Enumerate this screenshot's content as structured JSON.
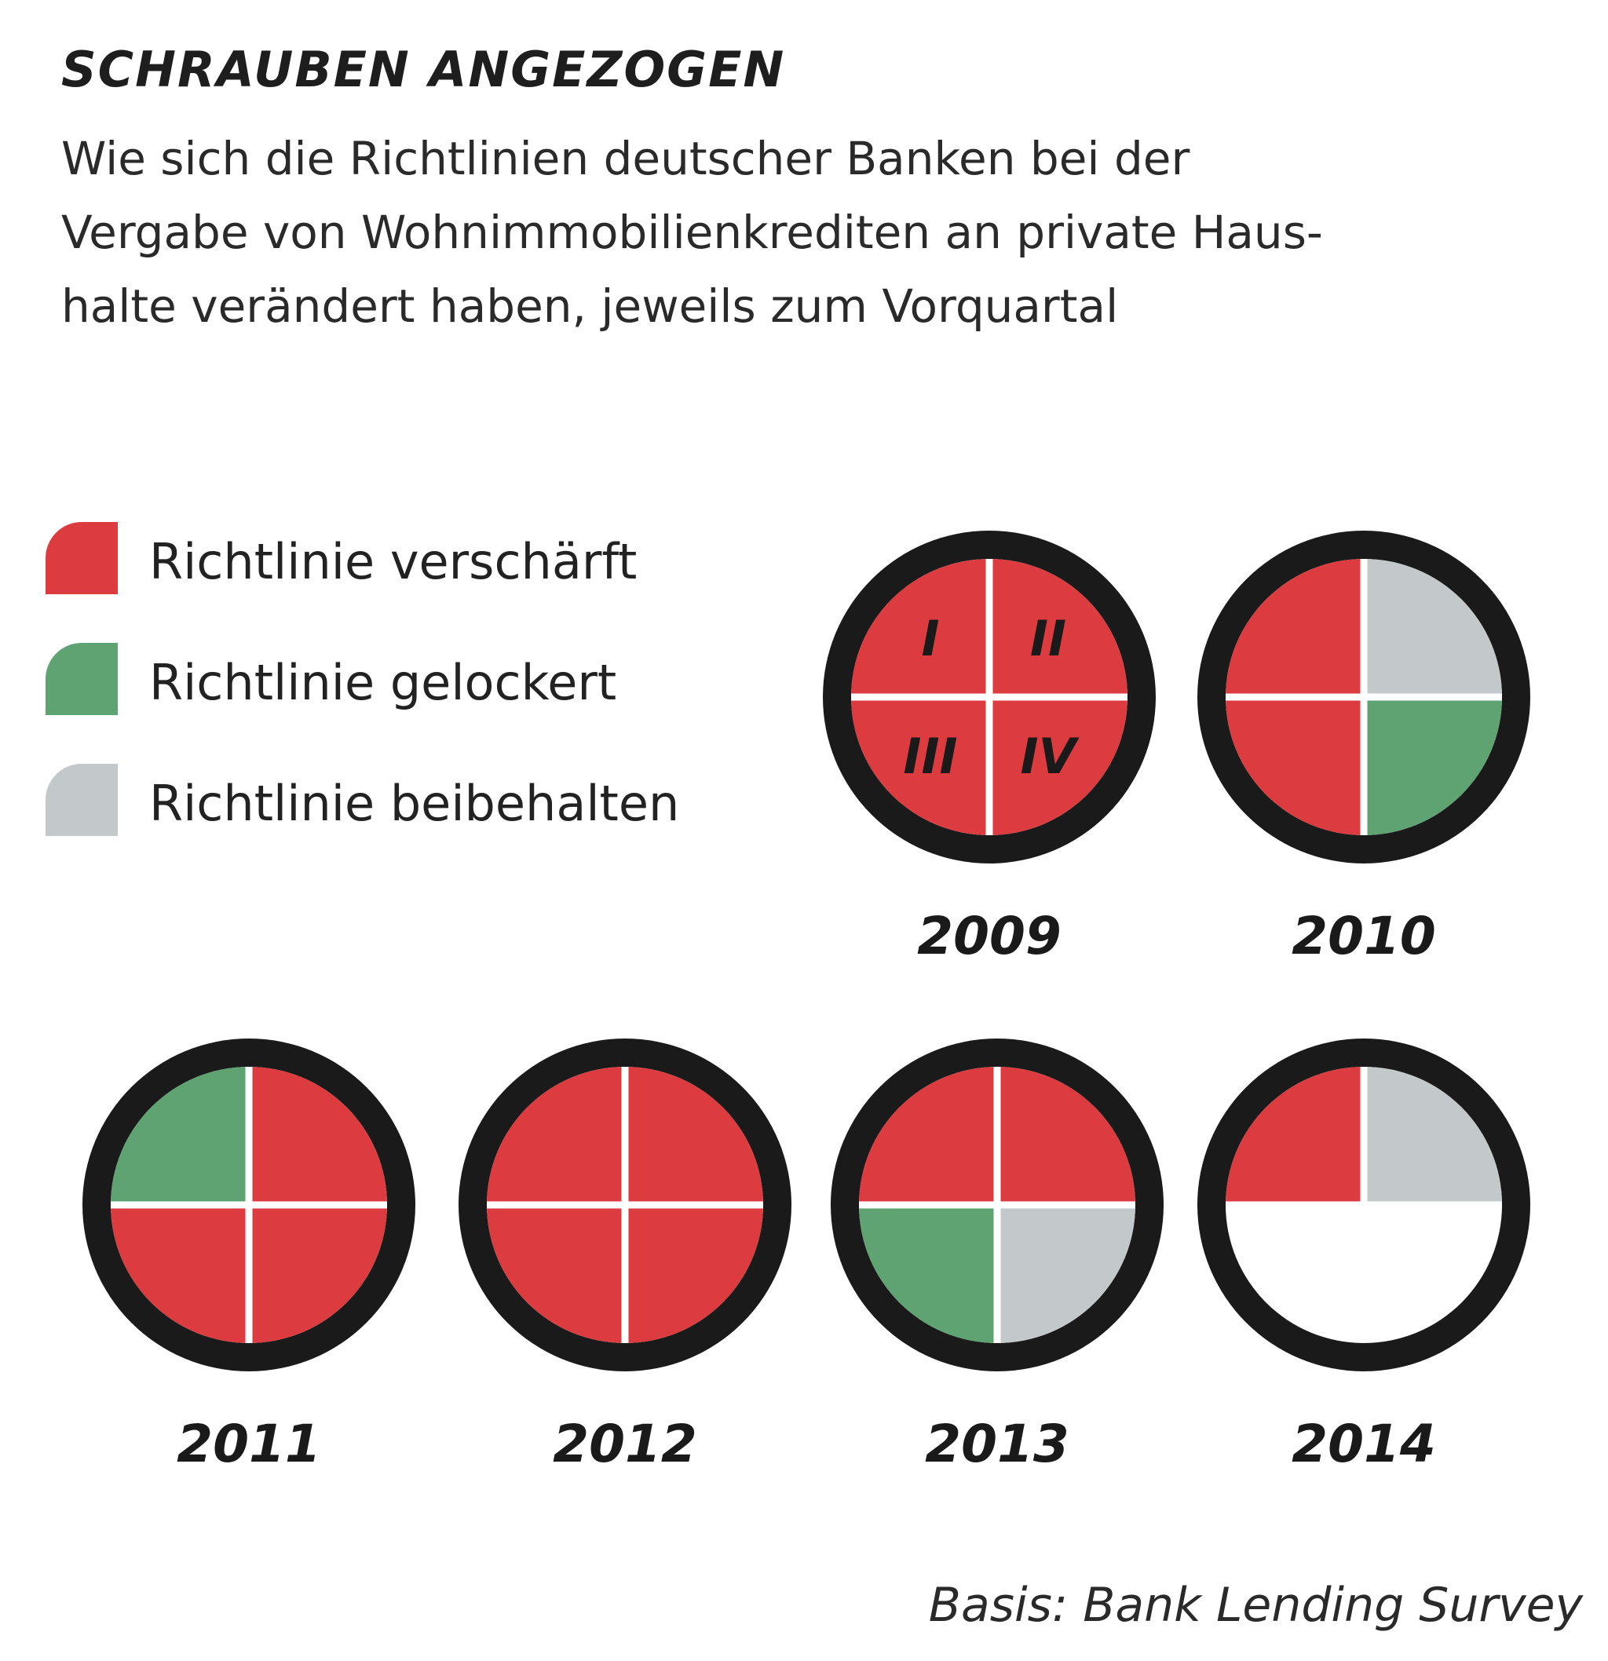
{
  "colors": {
    "tightened": "#dc3c40",
    "eased": "#5fa373",
    "unchanged": "#c3c8ca",
    "ring": "#1a1a1a",
    "divider": "#ffffff",
    "text": "#222222"
  },
  "chart_data": {
    "type": "quadrant-dial",
    "title": "SCHRAUBEN ANGEZOGEN",
    "subtitle_lines": [
      "Wie sich die Richtlinien deutscher Banken bei der",
      "Vergabe von Wohnimmobilienkrediten an private Haus-",
      "halte verändert haben, jeweils zum Vorquartal"
    ],
    "legend": [
      {
        "key": "tightened",
        "label": "Richtlinie verschärft"
      },
      {
        "key": "eased",
        "label": "Richtlinie gelockert"
      },
      {
        "key": "unchanged",
        "label": "Richtlinie beibehalten"
      }
    ],
    "quarter_labels": [
      "I",
      "II",
      "III",
      "IV"
    ],
    "years": [
      {
        "year": "2009",
        "quarters": [
          "tightened",
          "tightened",
          "tightened",
          "tightened"
        ],
        "show_quarter_labels": true
      },
      {
        "year": "2010",
        "quarters": [
          "tightened",
          "unchanged",
          "tightened",
          "eased"
        ],
        "show_quarter_labels": false
      },
      {
        "year": "2011",
        "quarters": [
          "eased",
          "tightened",
          "tightened",
          "tightened"
        ],
        "show_quarter_labels": false
      },
      {
        "year": "2012",
        "quarters": [
          "tightened",
          "tightened",
          "tightened",
          "tightened"
        ],
        "show_quarter_labels": false
      },
      {
        "year": "2013",
        "quarters": [
          "tightened",
          "tightened",
          "eased",
          "unchanged"
        ],
        "show_quarter_labels": false
      },
      {
        "year": "2014",
        "quarters": [
          "tightened",
          "unchanged",
          null,
          null
        ],
        "show_quarter_labels": false
      }
    ],
    "source": "Basis: Bank Lending Survey"
  }
}
